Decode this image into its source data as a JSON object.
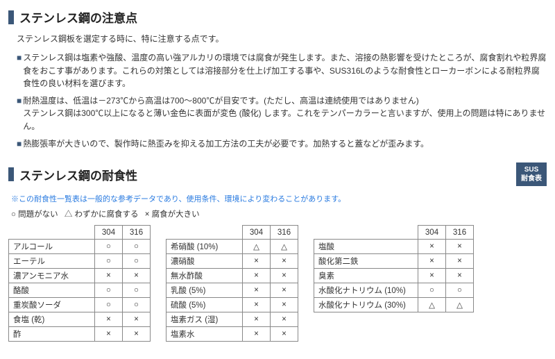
{
  "section1": {
    "title": "ステンレス鋼の注意点",
    "intro": "ステンレス鋼板を選定する時に、特に注意する点です。",
    "b1": "ステンレス鋼は塩素や強酸、温度の高い強アルカリの環境では腐食が発生します。また、溶接の熱影響を受けたところが、腐食割れや粒界腐食をおこす事があります。これらの対策としては溶接部分を仕上げ加工する事や、SUS316Lのような耐食性とローカーボンによる耐粒界腐食性の良い材料を選びます。",
    "b2": "耐熱温度は、低温は－273℃から高温は700～800℃が目安です。(ただし、高温は連続使用ではありません)\nステンレス鋼は300℃以上になると薄い金色に表面が変色 (酸化) します。これをテンパーカラーと言いますが、使用上の問題は特にありません。",
    "b3": "熱膨張率が大きいので、製作時に熱歪みを抑える加工方法の工夫が必要です。加熱すると蓋などが歪みます。"
  },
  "section2": {
    "title": "ステンレス鋼の耐食性",
    "badge_l1": "SUS",
    "badge_l2": "耐食表",
    "note": "※この耐食性一覧表は一般的な参考データであり、使用条件、環境により変わることがあります。",
    "legend_ok": "○ 問題がない",
    "legend_tri": "△ わずかに腐食する",
    "legend_x": "× 腐食が大きい"
  },
  "cols": {
    "c304": "304",
    "c316": "316"
  },
  "t1": {
    "r0n": "アルコール",
    "r0a": "○",
    "r0b": "○",
    "r1n": "エーテル",
    "r1a": "○",
    "r1b": "○",
    "r2n": "濃アンモニア水",
    "r2a": "×",
    "r2b": "×",
    "r3n": "酪酸",
    "r3a": "○",
    "r3b": "○",
    "r4n": "重炭酸ソーダ",
    "r4a": "○",
    "r4b": "○",
    "r5n": "食塩 (乾)",
    "r5a": "×",
    "r5b": "×",
    "r6n": "酢",
    "r6a": "×",
    "r6b": "×"
  },
  "t2": {
    "r0n": "希硝酸 (10%)",
    "r0a": "△",
    "r0b": "△",
    "r1n": "濃硝酸",
    "r1a": "×",
    "r1b": "×",
    "r2n": "無水酢酸",
    "r2a": "×",
    "r2b": "×",
    "r3n": "乳酸 (5%)",
    "r3a": "×",
    "r3b": "×",
    "r4n": "硫酸 (5%)",
    "r4a": "×",
    "r4b": "×",
    "r5n": "塩素ガス (湿)",
    "r5a": "×",
    "r5b": "×",
    "r6n": "塩素水",
    "r6a": "×",
    "r6b": "×"
  },
  "t3": {
    "r0n": "塩酸",
    "r0a": "×",
    "r0b": "×",
    "r1n": "酸化第二鉄",
    "r1a": "×",
    "r1b": "×",
    "r2n": "臭素",
    "r2a": "×",
    "r2b": "×",
    "r3n": "水酸化ナトリウム (10%)",
    "r3a": "○",
    "r3b": "○",
    "r4n": "水酸化ナトリウム (30%)",
    "r4a": "△",
    "r4b": "△"
  }
}
